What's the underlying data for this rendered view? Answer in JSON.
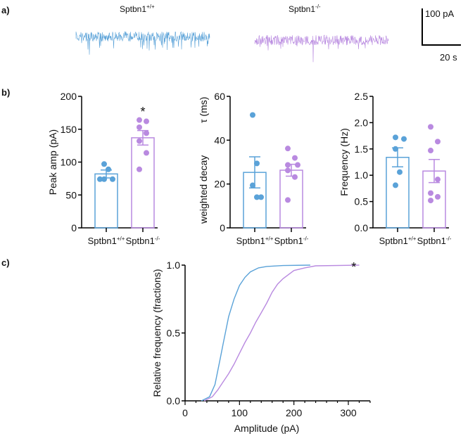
{
  "panels": {
    "a": "a)",
    "b": "b)",
    "c": "c)"
  },
  "colors": {
    "wt": "#5aa2d8",
    "ko": "#b98ae0",
    "axis": "#000000"
  },
  "traces": {
    "wt_label": "Sptbn1",
    "wt_sup": "+/+",
    "ko_label": "Sptbn1",
    "ko_sup": "-/-",
    "scale_y": "100 pA",
    "scale_x": "20 s"
  },
  "chart_data": [
    {
      "type": "bar",
      "title": "",
      "ylabel": "Peak amp (pA)",
      "ylim": [
        0,
        200
      ],
      "yticks": [
        "0",
        "50",
        "100",
        "150",
        "200"
      ],
      "categories": [
        "Sptbn1+/+",
        "Sptbn1-/-"
      ],
      "cat_base": "Sptbn1",
      "cat_sup": [
        "+/+",
        "-/-"
      ],
      "series": [
        {
          "name": "Sptbn1+/+",
          "mean": 82,
          "sem": 6,
          "points": [
            97,
            89,
            74,
            74,
            74
          ]
        },
        {
          "name": "Sptbn1-/-",
          "mean": 137,
          "sem": 11,
          "points": [
            164,
            162,
            153,
            144,
            132,
            114,
            89
          ]
        }
      ],
      "annotation": "*"
    },
    {
      "type": "bar",
      "ylabel": "weighted decay  τ (ms)",
      "ylabel1": "weighted decay",
      "ylabel2": "τ (ms)",
      "ylim": [
        0,
        60
      ],
      "yticks": [
        "0",
        "20",
        "40",
        "60"
      ],
      "categories": [
        "Sptbn1+/+",
        "Sptbn1-/-"
      ],
      "cat_base": "Sptbn1",
      "cat_sup": [
        "+/+",
        "-/-"
      ],
      "series": [
        {
          "name": "Sptbn1+/+",
          "mean": 25.3,
          "sem": 7.1,
          "points": [
            51.5,
            29.4,
            19.4,
            14,
            14
          ]
        },
        {
          "name": "Sptbn1-/-",
          "mean": 26.3,
          "sem": 2.7,
          "points": [
            36.2,
            31.9,
            28.7,
            28.7,
            26.2,
            23.2,
            12.7
          ]
        }
      ]
    },
    {
      "type": "bar",
      "ylabel": "Frequency  (Hz)",
      "ylim": [
        0,
        2.5
      ],
      "yticks": [
        "0.0",
        "0.5",
        "1.0",
        "1.5",
        "2.0",
        "2.5"
      ],
      "categories": [
        "Sptbn1+/+",
        "Sptbn1-/-"
      ],
      "cat_base": "Sptbn1",
      "cat_sup": [
        "+/+",
        "-/-"
      ],
      "series": [
        {
          "name": "Sptbn1+/+",
          "mean": 1.34,
          "sem": 0.18,
          "points": [
            1.72,
            1.69,
            1.5,
            1.06,
            0.81
          ]
        },
        {
          "name": "Sptbn1-/-",
          "mean": 1.08,
          "sem": 0.22,
          "points": [
            1.92,
            1.64,
            1.47,
            0.92,
            0.66,
            0.59,
            0.52
          ]
        }
      ]
    },
    {
      "type": "line",
      "xlabel": "Amplitude (pA)",
      "ylabel": "Relative frequency (fractions)",
      "xlim": [
        0,
        320
      ],
      "ylim": [
        0,
        1
      ],
      "xticks": [
        "0",
        "100",
        "200",
        "300"
      ],
      "yticks": [
        "0.0",
        "0.5",
        "1.0"
      ],
      "annotation": "*",
      "series": [
        {
          "name": "Sptbn1+/+",
          "x": [
            30,
            45,
            55,
            60,
            65,
            70,
            75,
            80,
            90,
            100,
            110,
            120,
            135,
            150,
            180,
            230
          ],
          "y": [
            0,
            0.03,
            0.12,
            0.22,
            0.32,
            0.42,
            0.52,
            0.62,
            0.75,
            0.85,
            0.91,
            0.95,
            0.98,
            0.99,
            0.997,
            1.0
          ]
        },
        {
          "name": "Sptbn1-/-",
          "x": [
            35,
            50,
            60,
            70,
            80,
            90,
            100,
            110,
            120,
            130,
            140,
            150,
            160,
            170,
            180,
            200,
            220,
            240,
            320
          ],
          "y": [
            0,
            0.03,
            0.08,
            0.14,
            0.2,
            0.27,
            0.35,
            0.43,
            0.5,
            0.58,
            0.65,
            0.72,
            0.8,
            0.86,
            0.9,
            0.96,
            0.98,
            0.995,
            1.0
          ]
        }
      ]
    }
  ]
}
